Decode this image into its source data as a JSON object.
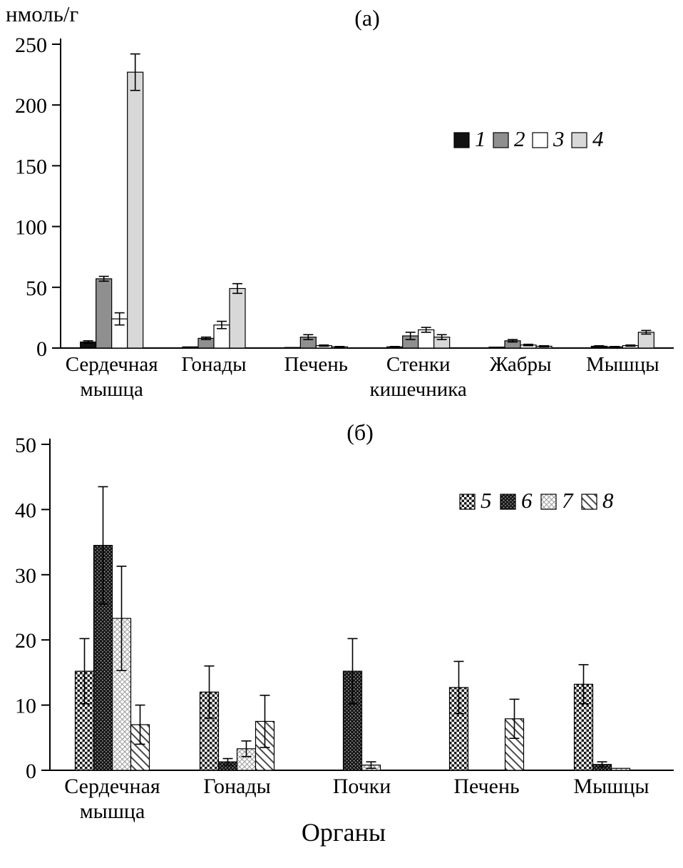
{
  "page": {
    "background": "#ffffff"
  },
  "chart_data": [
    {
      "type": "bar",
      "title": "(а)",
      "ylabel": "нмоль/г",
      "xlabel": "",
      "ylim": [
        0,
        250
      ],
      "yticks": [
        0,
        50,
        100,
        150,
        200,
        250
      ],
      "grid": false,
      "legend_position": "upper-right-inside",
      "categories": [
        [
          "Сердечная",
          "мышца"
        ],
        [
          "Гонады"
        ],
        [
          "Печень"
        ],
        [
          "Стенки",
          "кишечника"
        ],
        [
          "Жабры"
        ],
        [
          "Мышцы"
        ]
      ],
      "series": [
        {
          "name": "1",
          "fill": "#111111",
          "values": [
            5,
            1,
            0.5,
            1,
            0.8,
            1.5
          ],
          "errors": [
            1,
            0,
            0,
            0.3,
            0,
            0.4
          ]
        },
        {
          "name": "2",
          "fill": "#8f8f8f",
          "values": [
            57,
            8,
            9,
            10,
            6,
            1
          ],
          "errors": [
            2,
            1,
            2,
            3,
            1,
            0.3
          ]
        },
        {
          "name": "3",
          "fill": "#ffffff",
          "values": [
            24,
            19,
            2,
            15,
            2.5,
            2
          ],
          "errors": [
            5,
            3,
            0.5,
            2,
            0.6,
            0.5
          ]
        },
        {
          "name": "4",
          "fill": "#d8d8d8",
          "values": [
            227,
            49,
            1,
            9,
            1.5,
            13
          ],
          "errors": [
            15,
            4,
            0.3,
            2,
            0.4,
            1.5
          ]
        }
      ]
    },
    {
      "type": "bar",
      "title": "(б)",
      "ylabel": "",
      "xlabel": "Органы",
      "ylim": [
        0,
        50
      ],
      "yticks": [
        0,
        10,
        20,
        30,
        40,
        50
      ],
      "grid": false,
      "legend_position": "upper-right-inside",
      "categories": [
        [
          "Сердечная",
          "мышца"
        ],
        [
          "Гонады"
        ],
        [
          "Почки"
        ],
        [
          "Печень"
        ],
        [
          "Мышцы"
        ]
      ],
      "series": [
        {
          "name": "5",
          "pattern": "checker-coarse",
          "values": [
            15.2,
            12,
            0,
            12.7,
            13.2
          ],
          "errors": [
            5,
            4,
            0,
            4,
            3
          ]
        },
        {
          "name": "6",
          "pattern": "checker-dark",
          "values": [
            34.5,
            1.3,
            15.2,
            0,
            0.9
          ],
          "errors": [
            9,
            0.5,
            5,
            0,
            0.4
          ]
        },
        {
          "name": "7",
          "pattern": "diamond-light",
          "values": [
            23.3,
            3.3,
            0.8,
            0,
            0.3
          ],
          "errors": [
            8,
            1.2,
            0.5,
            0,
            0
          ]
        },
        {
          "name": "8",
          "pattern": "diagonal-hatch",
          "values": [
            7,
            7.5,
            0,
            7.9,
            0
          ],
          "errors": [
            3,
            4,
            0,
            3,
            0
          ]
        }
      ]
    }
  ]
}
